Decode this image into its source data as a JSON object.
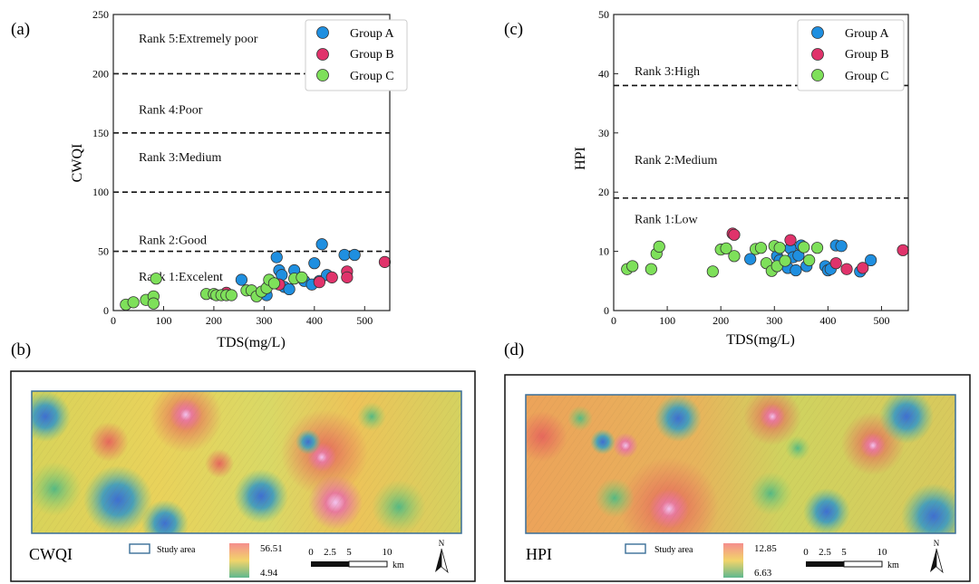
{
  "panel_labels": {
    "a": "(a)",
    "b": "(b)",
    "c": "(c)",
    "d": "(d)"
  },
  "legend": [
    {
      "name": "Group A",
      "color": "#1f8fe0"
    },
    {
      "name": "Group B",
      "color": "#e0336b"
    },
    {
      "name": "Group C",
      "color": "#7ee05a"
    }
  ],
  "chart_data": [
    {
      "panel": "(a)",
      "type": "scatter",
      "xlabel": "TDS(mg/L)",
      "ylabel": "CWQI",
      "xlim": [
        0,
        550
      ],
      "ylim": [
        0,
        250
      ],
      "xticks": [
        0,
        100,
        200,
        300,
        400,
        500
      ],
      "yticks": [
        0,
        50,
        100,
        150,
        200,
        250
      ],
      "thresholds": [
        50,
        100,
        150,
        200
      ],
      "rank_labels": [
        {
          "text": "Rank 5:Extremely poor",
          "y": 230
        },
        {
          "text": "Rank 4:Poor",
          "y": 170
        },
        {
          "text": "Rank 3:Medium",
          "y": 130
        },
        {
          "text": "Rank 2:Good",
          "y": 60
        },
        {
          "text": "Rank 1:Excelent",
          "y": 29
        }
      ],
      "series": [
        {
          "name": "Group A",
          "points": [
            [
              255,
              26
            ],
            [
              305,
              13
            ],
            [
              310,
              22
            ],
            [
              315,
              24
            ],
            [
              325,
              45
            ],
            [
              330,
              34
            ],
            [
              335,
              30
            ],
            [
              340,
              20
            ],
            [
              350,
              18
            ],
            [
              360,
              34
            ],
            [
              380,
              25
            ],
            [
              395,
              22
            ],
            [
              400,
              40
            ],
            [
              410,
              25
            ],
            [
              415,
              56
            ],
            [
              425,
              30
            ],
            [
              460,
              47
            ],
            [
              480,
              47
            ]
          ]
        },
        {
          "name": "Group B",
          "points": [
            [
              225,
              15
            ],
            [
              330,
              22
            ],
            [
              410,
              24
            ],
            [
              435,
              28
            ],
            [
              465,
              33
            ],
            [
              465,
              28
            ],
            [
              540,
              41
            ]
          ]
        },
        {
          "name": "Group C",
          "points": [
            [
              25,
              5
            ],
            [
              40,
              7
            ],
            [
              65,
              9
            ],
            [
              80,
              12
            ],
            [
              80,
              6
            ],
            [
              85,
              27
            ],
            [
              185,
              14
            ],
            [
              200,
              14
            ],
            [
              205,
              13
            ],
            [
              215,
              13
            ],
            [
              225,
              13
            ],
            [
              235,
              13
            ],
            [
              265,
              17
            ],
            [
              275,
              17
            ],
            [
              285,
              12
            ],
            [
              295,
              16
            ],
            [
              305,
              19
            ],
            [
              310,
              26
            ],
            [
              320,
              23
            ],
            [
              360,
              27
            ],
            [
              375,
              28
            ]
          ]
        }
      ]
    },
    {
      "panel": "(c)",
      "type": "scatter",
      "xlabel": "TDS(mg/L)",
      "ylabel": "HPI",
      "xlim": [
        0,
        550
      ],
      "ylim": [
        0,
        50
      ],
      "xticks": [
        0,
        100,
        200,
        300,
        400,
        500
      ],
      "yticks": [
        0,
        10,
        20,
        30,
        40,
        50
      ],
      "thresholds": [
        19,
        38
      ],
      "rank_labels": [
        {
          "text": "Rank 3:High",
          "y": 40.5
        },
        {
          "text": "Rank 2:Medium",
          "y": 25.5
        },
        {
          "text": "Rank 1:Low",
          "y": 15.5
        }
      ],
      "series": [
        {
          "name": "Group A",
          "points": [
            [
              255,
              8.7
            ],
            [
              305,
              9.2
            ],
            [
              310,
              8.5
            ],
            [
              320,
              8.2
            ],
            [
              325,
              7.2
            ],
            [
              330,
              10.5
            ],
            [
              335,
              9.0
            ],
            [
              340,
              6.8
            ],
            [
              345,
              9.3
            ],
            [
              350,
              11.0
            ],
            [
              360,
              7.5
            ],
            [
              395,
              7.5
            ],
            [
              400,
              6.8
            ],
            [
              405,
              7.0
            ],
            [
              415,
              11.0
            ],
            [
              425,
              10.9
            ],
            [
              460,
              6.6
            ],
            [
              480,
              8.5
            ]
          ]
        },
        {
          "name": "Group B",
          "points": [
            [
              222,
              13.0
            ],
            [
              225,
              12.8
            ],
            [
              330,
              11.9
            ],
            [
              415,
              8.0
            ],
            [
              435,
              7.0
            ],
            [
              465,
              7.2
            ],
            [
              540,
              10.2
            ]
          ]
        },
        {
          "name": "Group C",
          "points": [
            [
              25,
              7.0
            ],
            [
              35,
              7.5
            ],
            [
              70,
              7.0
            ],
            [
              80,
              9.6
            ],
            [
              85,
              10.8
            ],
            [
              185,
              6.6
            ],
            [
              200,
              10.3
            ],
            [
              210,
              10.5
            ],
            [
              225,
              9.2
            ],
            [
              265,
              10.4
            ],
            [
              275,
              10.6
            ],
            [
              285,
              8.0
            ],
            [
              295,
              6.7
            ],
            [
              300,
              10.9
            ],
            [
              305,
              7.5
            ],
            [
              310,
              10.6
            ],
            [
              320,
              8.4
            ],
            [
              355,
              10.7
            ],
            [
              365,
              8.5
            ],
            [
              380,
              10.6
            ]
          ]
        }
      ]
    }
  ],
  "maps": [
    {
      "panel": "(b)",
      "title": "CWQI",
      "legend_label": "Study area",
      "max": "56.51",
      "min": "4.94",
      "scale_ticks": [
        "0",
        "2.5",
        "5",
        "10"
      ],
      "scale_unit": "km",
      "north": "N"
    },
    {
      "panel": "(d)",
      "title": "HPI",
      "legend_label": "Study area",
      "max": "12.85",
      "min": "6.63",
      "scale_ticks": [
        "0",
        "2.5",
        "5",
        "10"
      ],
      "scale_unit": "km",
      "north": "N"
    }
  ]
}
